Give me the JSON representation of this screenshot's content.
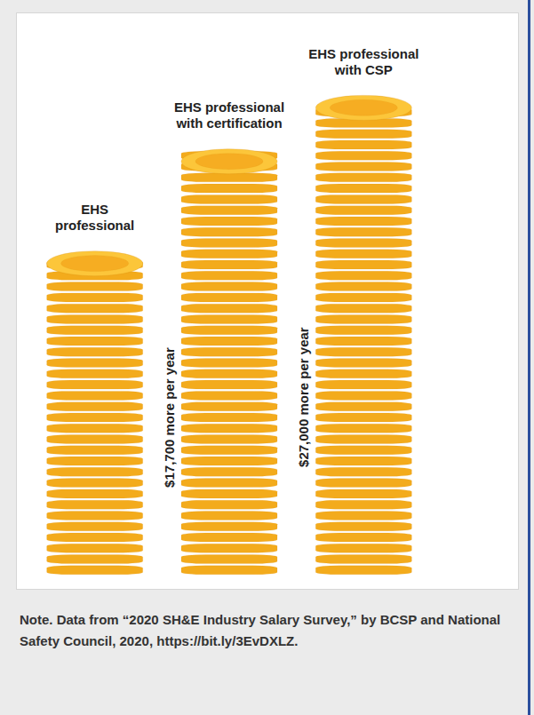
{
  "chart_data": {
    "type": "pictorial_bar",
    "categories": [
      "EHS professional",
      "EHS professional with certification",
      "EHS professional with CSP"
    ],
    "values": [
      54000,
      71700,
      81000
    ],
    "color": "#f3ab1c",
    "ylim": [
      0,
      81000
    ],
    "grid": false,
    "tick_labels": false,
    "annotations": [
      {
        "category": "EHS professional with certification",
        "text": "$17,700 more per year"
      },
      {
        "category": "EHS professional with CSP",
        "text": "$27,000 more per year"
      }
    ],
    "note": "Note. Data from “2020 SH&E Industry Salary Survey,” by BCSP and National Safety Council, 2020, https://bit.ly/3EvDXLZ."
  }
}
